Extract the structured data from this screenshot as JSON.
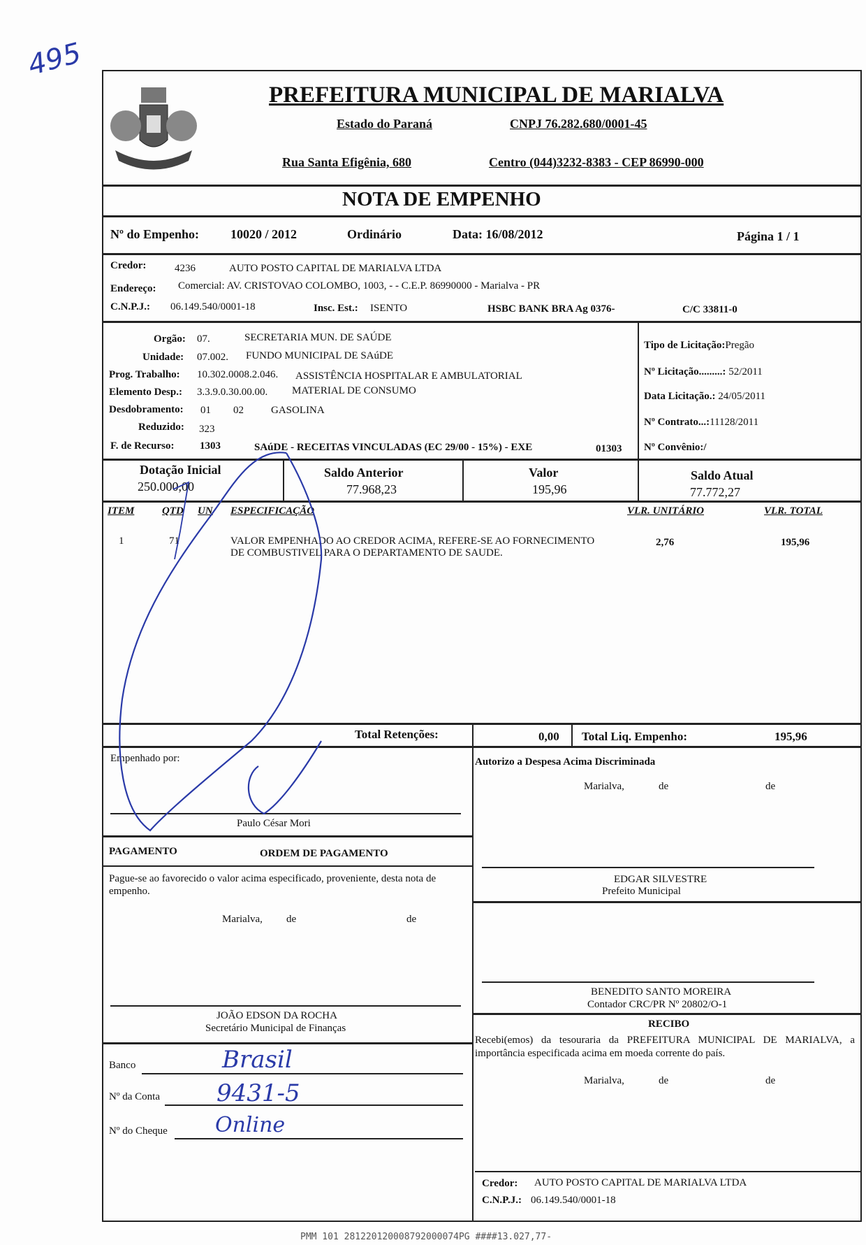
{
  "margin_note": "495",
  "header": {
    "title": "PREFEITURA MUNICIPAL DE MARIALVA",
    "state": "Estado do Paraná",
    "cnpj": "CNPJ 76.282.680/0001-45",
    "address": "Rua Santa Efigênia, 680",
    "district_phone_cep": "Centro  (044)3232-8383  -  CEP 86990-000"
  },
  "doc_title": "NOTA  DE  EMPENHO",
  "empenho": {
    "label": "Nº do Empenho:",
    "number": "10020 / 2012",
    "type": "Ordinário",
    "date": "Data: 16/08/2012",
    "page": "Página  1 / 1"
  },
  "credor": {
    "label": "Credor:",
    "code": "4236",
    "name": "AUTO POSTO CAPITAL DE MARIALVA LTDA",
    "address_label": "Endereço:",
    "address": "Comercial: AV. CRISTOVAO COLOMBO, 1003, - - C.E.P. 86990000 - Marialva - PR",
    "cnpj_label": "C.N.P.J.:",
    "cnpj": "06.149.540/0001-18",
    "ie_label": "Insc. Est.:",
    "ie": "ISENTO",
    "bank": "HSBC BANK BRA  Ag  0376-",
    "account": "C/C  33811-0"
  },
  "budget": {
    "orgao_label": "Orgão:",
    "orgao_code": "07.",
    "orgao": "SECRETARIA MUN. DE SAÚDE",
    "unidade_label": "Unidade:",
    "unidade_code": "07.002.",
    "unidade": "FUNDO MUNICIPAL DE SAúDE",
    "prog_label": "Prog. Trabalho:",
    "prog_code": "10.302.0008.2.046.",
    "prog": "ASSISTÊNCIA HOSPITALAR E AMBULATORIAL",
    "elem_label": "Elemento Desp.:",
    "elem_code": "3.3.9.0.30.00.00.",
    "elem": "MATERIAL DE CONSUMO",
    "desd_label": "Desdobramento:",
    "desd_1": "01",
    "desd_2": "02",
    "desd": "GASOLINA",
    "red_label": "Reduzido:",
    "red": "323",
    "fonte_label": "F. de Recurso:",
    "fonte_code": "1303",
    "fonte": "SAúDE - RECEITAS VINCULADAS (EC 29/00 - 15%) - EXE",
    "fonte_code2": "01303"
  },
  "licitacao": {
    "tipo_label": "Tipo de Licitação:",
    "tipo": "Pregão",
    "num_label": "Nº Licitação.........:",
    "num": "52/2011",
    "data_label": "Data Licitação.:",
    "data": "24/05/2011",
    "contrato_label": "Nº Contrato...:",
    "contrato": "11128/2011",
    "convenio_label": "Nº Convênio:/"
  },
  "values": {
    "dotacao_label": "Dotação Inicial",
    "dotacao": "250.000,00",
    "saldo_ant_label": "Saldo Anterior",
    "saldo_ant": "77.968,23",
    "valor_label": "Valor",
    "valor": "195,96",
    "saldo_atual_label": "Saldo Atual",
    "saldo_atual": "77.772,27"
  },
  "items": {
    "headers": {
      "item": "ITEM",
      "qtd": "QTD",
      "un": "UN",
      "esp": "ESPECIFICAÇÃO",
      "unit": "VLR. UNITÁRIO",
      "total": "VLR. TOTAL"
    },
    "rows": [
      {
        "item": "1",
        "qtd": "71",
        "un": "",
        "esp": "VALOR EMPENHADO AO CREDOR ACIMA, REFERE-SE AO FORNECIMENTO DE COMBUSTIVEL PARA O DEPARTAMENTO DE SAUDE.",
        "unit": "2,76",
        "total": "195,96"
      }
    ]
  },
  "totals": {
    "ret_label": "Total Retenções:",
    "ret": "0,00",
    "liq_label": "Total Liq. Empenho:",
    "liq": "195,96"
  },
  "empenhado": {
    "label": "Empenhado por:",
    "name": "Paulo César Mori"
  },
  "autorizo": {
    "label": "Autorizo a Despesa Acima Discriminada",
    "place": "Marialva,",
    "de1": "de",
    "de2": "de",
    "name": "EDGAR SILVESTRE",
    "role": "Prefeito Municipal"
  },
  "pagamento": {
    "label": "PAGAMENTO",
    "ordem": "ORDEM DE PAGAMENTO",
    "text": "Pague-se ao favorecido o valor acima especificado, proveniente, desta nota de empenho.",
    "place": "Marialva,",
    "de1": "de",
    "de2": "de",
    "name": "JOÃO EDSON DA ROCHA",
    "role": "Secretário Municipal de Finanças"
  },
  "contador": {
    "name": "BENEDITO SANTO MOREIRA",
    "role": "Contador CRC/PR Nº 20802/O-1"
  },
  "recibo": {
    "title": "RECIBO",
    "text": "Recebi(emos) da tesouraria da PREFEITURA MUNICIPAL DE MARIALVA, a importância especificada acima em moeda corrente do país.",
    "place": "Marialva,",
    "de1": "de",
    "de2": "de",
    "credor_label": "Credor:",
    "credor": "AUTO POSTO CAPITAL DE MARIALVA LTDA",
    "cnpj_label": "C.N.P.J.:",
    "cnpj": "06.149.540/0001-18"
  },
  "bank_fields": {
    "banco_label": "Banco",
    "banco": "Brasil",
    "conta_label": "Nº da Conta",
    "conta": "9431-5",
    "cheque_label": "Nº do Cheque",
    "cheque": "Online"
  },
  "footer_code": "PMM 101 28122012000879200007​4PG ####13.027,77-",
  "ink_color": "#2a3aa8"
}
